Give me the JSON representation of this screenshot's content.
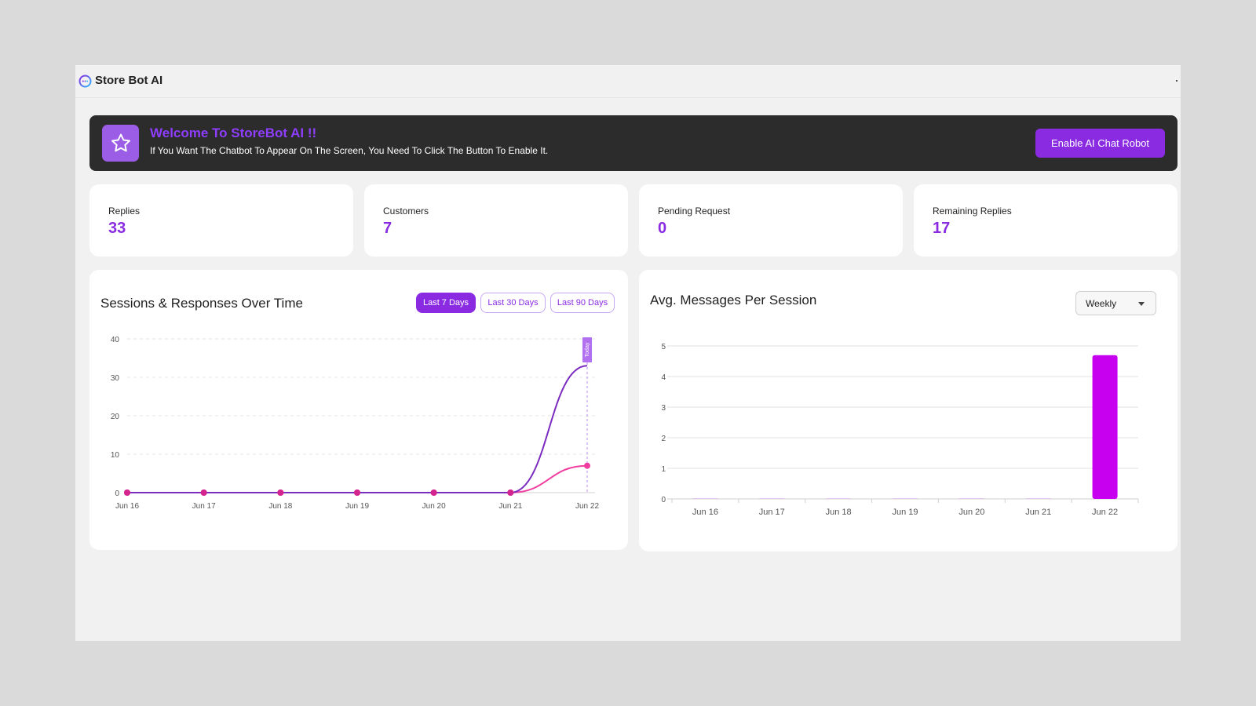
{
  "app": {
    "brand": "Store Bot AI"
  },
  "banner": {
    "title": "Welcome To StoreBot AI !!",
    "subtitle": "If You Want The Chatbot To Appear On The Screen, You Need To Click The Button To Enable It.",
    "button_label": "Enable AI Chat Robot",
    "icon": "star-icon"
  },
  "stats": [
    {
      "label": "Replies",
      "value": "33"
    },
    {
      "label": "Customers",
      "value": "7"
    },
    {
      "label": "Pending Request",
      "value": "0"
    },
    {
      "label": "Remaining Replies",
      "value": "17"
    }
  ],
  "sessions_card": {
    "title": "Sessions & Responses Over Time",
    "ranges": [
      "Last 7 Days",
      "Last 30 Days",
      "Last 90 Days"
    ],
    "active_range": "Last 7 Days"
  },
  "avg_card": {
    "title": "Avg. Messages Per Session",
    "select_value": "Weekly"
  },
  "colors": {
    "accent": "#8a2be2",
    "series_primary": "#7b2cbf",
    "series_secondary": "#f03ea0",
    "bar": "#c800f0"
  },
  "chart_data": [
    {
      "type": "line",
      "x": [
        "Jun 16",
        "Jun 17",
        "Jun 18",
        "Jun 19",
        "Jun 20",
        "Jun 21",
        "Jun 22"
      ],
      "series": [
        {
          "values": [
            0,
            0,
            0,
            0,
            0,
            0,
            33
          ],
          "color": "#7b2cbf"
        },
        {
          "values": [
            0,
            0,
            0,
            0,
            0,
            0,
            7
          ],
          "color": "#f03ea0"
        }
      ],
      "ylim": [
        0,
        40
      ],
      "yticks": [
        0,
        10,
        20,
        30,
        40
      ],
      "annotation": "Today",
      "grid": true
    },
    {
      "type": "bar",
      "categories": [
        "Jun 16",
        "Jun 17",
        "Jun 18",
        "Jun 19",
        "Jun 20",
        "Jun 21",
        "Jun 22"
      ],
      "values": [
        0,
        0,
        0,
        0,
        0,
        0,
        4.7
      ],
      "ylim": [
        0,
        5
      ],
      "yticks": [
        0,
        1,
        2,
        3,
        4,
        5
      ],
      "color": "#c800f0",
      "grid": true
    }
  ]
}
